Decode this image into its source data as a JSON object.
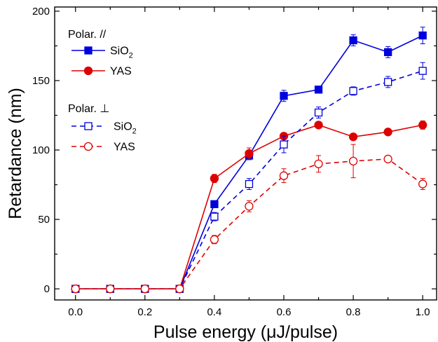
{
  "chart_data": {
    "type": "line",
    "xlabel": "Pulse energy (μJ/pulse)",
    "ylabel": "Retardance (nm)",
    "xlim": [
      -0.06,
      1.04
    ],
    "ylim": [
      -8,
      203
    ],
    "x_ticks": [
      0.0,
      0.2,
      0.4,
      0.6,
      0.8,
      1.0
    ],
    "x_tick_labels": [
      "0.0",
      "0.2",
      "0.4",
      "0.6",
      "0.8",
      "1.0"
    ],
    "y_ticks": [
      0,
      50,
      100,
      150,
      200
    ],
    "y_tick_labels": [
      "0",
      "50",
      "100",
      "150",
      "200"
    ],
    "legend": {
      "placement": "top-left",
      "group1_title": "Polar. //",
      "group2_title": "Polar. ⊥"
    },
    "x": [
      0.0,
      0.1,
      0.2,
      0.3,
      0.4,
      0.5,
      0.6,
      0.7,
      0.8,
      0.9,
      1.0
    ],
    "series": [
      {
        "name": "SiO",
        "name_sub": "2",
        "group": 1,
        "color": "#0000dd",
        "marker": "square",
        "filled": true,
        "dashed": false,
        "values": [
          0,
          0,
          0,
          0,
          61,
          96,
          139,
          143.5,
          179,
          170.5,
          182.5
        ],
        "errors": [
          0,
          0,
          0,
          0,
          2,
          3,
          4,
          2,
          4,
          4,
          6
        ]
      },
      {
        "name": "YAS",
        "group": 1,
        "color": "#dd0000",
        "marker": "circle",
        "filled": true,
        "dashed": false,
        "values": [
          0,
          0,
          0,
          0,
          79.5,
          97.5,
          110,
          118,
          109.5,
          113,
          118
        ],
        "errors": [
          0,
          0,
          0,
          0,
          3,
          4,
          2,
          2,
          2,
          2,
          3
        ]
      },
      {
        "name": "SiO",
        "name_sub": "2",
        "group": 2,
        "color": "#0000dd",
        "marker": "square",
        "filled": false,
        "dashed": true,
        "values": [
          0,
          0,
          0,
          0,
          52,
          75.5,
          104,
          127,
          142.5,
          149,
          157
        ],
        "errors": [
          0,
          0,
          0,
          0,
          3,
          4,
          6,
          4,
          3,
          4,
          6
        ]
      },
      {
        "name": "YAS",
        "group": 2,
        "color": "#dd0000",
        "marker": "circle",
        "filled": false,
        "dashed": true,
        "values": [
          0,
          0,
          0,
          0,
          35.5,
          59.5,
          81.5,
          90,
          92,
          93.5,
          75.5
        ],
        "errors": [
          0,
          0,
          0,
          0,
          3,
          4,
          5,
          6,
          12,
          2,
          4
        ]
      }
    ]
  }
}
